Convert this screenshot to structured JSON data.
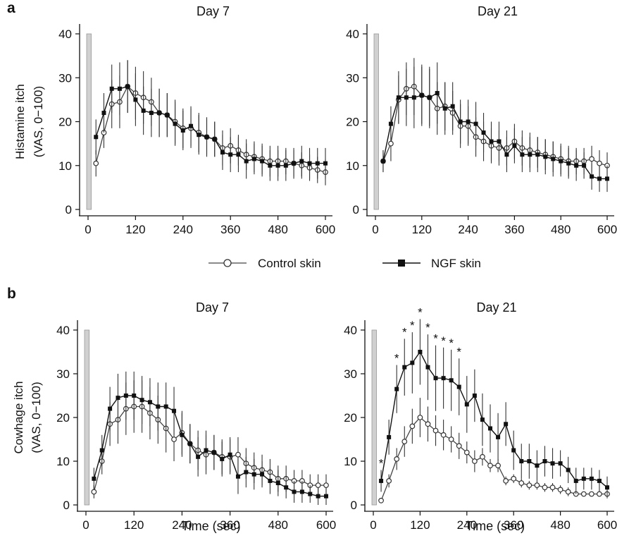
{
  "legend": {
    "control_label": "Control skin",
    "ngf_label": "NGF skin"
  },
  "colors": {
    "control_marker_fill": "#ffffff",
    "control_marker_stroke": "#333333",
    "ngf_marker_fill": "#111111",
    "stimulus_bar": "#d0d0d0"
  },
  "chart_data": [
    {
      "type": "line",
      "panel_letter": "a",
      "title": "Day 7",
      "xlabel": "",
      "ylabel": [
        "Histamine itch",
        "(VAS, 0−100)"
      ],
      "xlim": [
        -10,
        610
      ],
      "ylim": [
        0,
        40
      ],
      "xticks": [
        0,
        120,
        240,
        360,
        480,
        600
      ],
      "yticks": [
        0,
        10,
        20,
        30,
        40
      ],
      "stimulus_bar": {
        "x0": 0,
        "x1": 10,
        "y": 40
      },
      "x": [
        20,
        40,
        60,
        80,
        100,
        120,
        140,
        160,
        180,
        200,
        220,
        240,
        260,
        280,
        300,
        320,
        340,
        360,
        380,
        400,
        420,
        440,
        460,
        480,
        500,
        520,
        540,
        560,
        580,
        600
      ],
      "series": [
        {
          "name": "Control skin",
          "marker": "open-circle",
          "values": [
            10.5,
            17.5,
            24,
            24.5,
            28,
            26.5,
            25.5,
            24.5,
            22,
            21.5,
            20,
            18.5,
            18.5,
            17.5,
            16.5,
            16,
            14,
            14.5,
            13.5,
            12.5,
            12,
            11.5,
            11,
            11,
            11,
            10.5,
            10,
            9.5,
            9,
            8.5
          ],
          "err": [
            3,
            3.5,
            5.5,
            6,
            6,
            6,
            6,
            5.5,
            5.5,
            5,
            5,
            4.5,
            4.5,
            4.5,
            4,
            4,
            4,
            4,
            3.5,
            3.5,
            3.5,
            3.5,
            3.5,
            3.5,
            3,
            3,
            3,
            3,
            3,
            3
          ]
        },
        {
          "name": "NGF skin",
          "marker": "filled-square",
          "values": [
            16.5,
            22,
            27.5,
            27.5,
            28,
            25,
            22.5,
            22,
            22,
            21.5,
            19.5,
            18,
            19,
            17,
            16.5,
            16,
            13,
            12.5,
            12.5,
            11,
            11.5,
            11,
            10,
            10,
            10,
            10.5,
            11,
            10.5,
            10.5,
            10.5
          ],
          "err": [
            4,
            4.5,
            5.5,
            6,
            6,
            6,
            5.5,
            5.5,
            5.5,
            5,
            5,
            4.5,
            4.5,
            4.5,
            4.5,
            4,
            4,
            4,
            4,
            4,
            3.5,
            3.5,
            3.5,
            3.5,
            3.5,
            3.5,
            3.5,
            3.5,
            3.5,
            3.5
          ]
        }
      ]
    },
    {
      "type": "line",
      "panel_letter": "",
      "title": "Day 21",
      "xlabel": "",
      "ylabel": [],
      "xlim": [
        -10,
        610
      ],
      "ylim": [
        0,
        40
      ],
      "xticks": [
        0,
        120,
        240,
        360,
        480,
        600
      ],
      "yticks": [
        0,
        10,
        20,
        30,
        40
      ],
      "stimulus_bar": {
        "x0": 0,
        "x1": 10,
        "y": 40
      },
      "x": [
        20,
        40,
        60,
        80,
        100,
        120,
        140,
        160,
        180,
        200,
        220,
        240,
        260,
        280,
        300,
        320,
        340,
        360,
        380,
        400,
        420,
        440,
        460,
        480,
        500,
        520,
        540,
        560,
        580,
        600
      ],
      "series": [
        {
          "name": "Control skin",
          "marker": "open-circle",
          "values": [
            11,
            15,
            25,
            27.5,
            28,
            26,
            25.5,
            23,
            23.5,
            22,
            19,
            19,
            16.5,
            15.5,
            14.5,
            14,
            14,
            15.5,
            14,
            13.5,
            13,
            12.5,
            12,
            11.5,
            11,
            11,
            11,
            11.5,
            10.5,
            10
          ],
          "err": [
            2.5,
            4,
            5.5,
            6,
            6.5,
            6.5,
            6.5,
            6,
            5.5,
            5,
            5,
            4.5,
            4.5,
            4.5,
            4,
            4,
            4,
            4,
            4,
            4,
            3.5,
            3.5,
            3.5,
            3.5,
            3.5,
            3,
            3,
            3,
            3,
            3
          ]
        },
        {
          "name": "NGF skin",
          "marker": "filled-square",
          "values": [
            11,
            19.5,
            25.5,
            25.5,
            25.5,
            26,
            25.5,
            26.5,
            23,
            23.5,
            20,
            20,
            19.5,
            17.5,
            15.5,
            15.5,
            12.5,
            14.5,
            12.5,
            12.5,
            12.5,
            12,
            11.5,
            11,
            10.5,
            10,
            10,
            7.5,
            7,
            7
          ],
          "err": [
            2.5,
            4,
            6,
            6.5,
            7,
            7,
            7,
            7,
            6,
            5.5,
            5,
            5,
            5,
            4.5,
            4.5,
            4.5,
            4,
            4,
            4,
            4,
            4,
            4,
            4,
            3.5,
            3.5,
            3.5,
            3,
            3,
            3,
            3
          ]
        }
      ]
    },
    {
      "type": "line",
      "panel_letter": "b",
      "title": "Day 7",
      "xlabel": "Time (sec)",
      "ylabel": [
        "Cowhage itch",
        "(VAS, 0−100)"
      ],
      "xlim": [
        -10,
        610
      ],
      "ylim": [
        0,
        40
      ],
      "xticks": [
        0,
        120,
        240,
        360,
        480,
        600
      ],
      "yticks": [
        0,
        10,
        20,
        30,
        40
      ],
      "stimulus_bar": {
        "x0": 0,
        "x1": 10,
        "y": 40
      },
      "x": [
        20,
        40,
        60,
        80,
        100,
        120,
        140,
        160,
        180,
        200,
        220,
        240,
        260,
        280,
        300,
        320,
        340,
        360,
        380,
        400,
        420,
        440,
        460,
        480,
        500,
        520,
        540,
        560,
        580,
        600
      ],
      "series": [
        {
          "name": "Control skin",
          "marker": "open-circle",
          "values": [
            3,
            10,
            18.5,
            19.5,
            22,
            22.5,
            22.5,
            21,
            19.5,
            17.5,
            15,
            16.5,
            14,
            12.5,
            11.5,
            12,
            11,
            11,
            11.5,
            9.5,
            8.5,
            8,
            7.5,
            6,
            6,
            5.5,
            5.5,
            4.5,
            4.5,
            4.5
          ],
          "err": [
            1.5,
            3,
            5,
            5.5,
            6,
            6,
            6,
            6,
            5.5,
            5.5,
            5,
            5,
            4.5,
            4.5,
            4.5,
            4,
            4,
            4,
            4,
            3.5,
            3.5,
            3.5,
            3,
            3,
            3,
            2.5,
            2.5,
            2.5,
            2.5,
            2.5
          ]
        },
        {
          "name": "NGF skin",
          "marker": "filled-square",
          "values": [
            6,
            12.5,
            22,
            24.5,
            25,
            25,
            24,
            23.5,
            22.5,
            22.5,
            21.5,
            16,
            14,
            11,
            12.5,
            12,
            10.5,
            11.5,
            6.5,
            7.5,
            7,
            7,
            5.5,
            5,
            4,
            3,
            3,
            2.5,
            2,
            2
          ],
          "err": [
            2.5,
            3.5,
            5,
            5.5,
            5.5,
            5.5,
            5.5,
            5.5,
            5.5,
            5.5,
            5.5,
            5,
            4.5,
            4.5,
            4.5,
            4,
            4,
            4,
            4,
            3.5,
            3.5,
            3,
            3,
            3,
            2.5,
            2.5,
            2.5,
            2,
            2,
            2
          ]
        }
      ]
    },
    {
      "type": "line",
      "panel_letter": "",
      "title": "Day 21",
      "xlabel": "Time (sec)",
      "ylabel": [],
      "xlim": [
        -10,
        610
      ],
      "ylim": [
        0,
        40
      ],
      "xticks": [
        0,
        120,
        240,
        360,
        480,
        600
      ],
      "yticks": [
        0,
        10,
        20,
        30,
        40
      ],
      "stimulus_bar": {
        "x0": 0,
        "x1": 10,
        "y": 40
      },
      "x": [
        20,
        40,
        60,
        80,
        100,
        120,
        140,
        160,
        180,
        200,
        220,
        240,
        260,
        280,
        300,
        320,
        340,
        360,
        380,
        400,
        420,
        440,
        460,
        480,
        500,
        520,
        540,
        560,
        580,
        600
      ],
      "significance": {
        "symbol": "*",
        "x": [
          20,
          60,
          80,
          100,
          120,
          140,
          160,
          180,
          200,
          220
        ]
      },
      "series": [
        {
          "name": "Control skin",
          "marker": "open-circle",
          "values": [
            1,
            5.5,
            10.5,
            14.5,
            18,
            20,
            18.5,
            17,
            16,
            15,
            13.5,
            12,
            10,
            11,
            9,
            9,
            5.5,
            6,
            5,
            4.5,
            4.5,
            4,
            4,
            3.5,
            3,
            2.5,
            2.5,
            2.5,
            2.5,
            2.5
          ],
          "err": [
            0.5,
            1.5,
            2.5,
            3.5,
            4,
            4.5,
            4,
            3.5,
            3.5,
            3,
            3,
            2.5,
            2.5,
            2,
            1.5,
            1.5,
            1,
            1,
            1,
            1,
            1,
            1,
            1,
            1,
            1,
            0.5,
            0.5,
            0.5,
            0.5,
            0.5
          ]
        },
        {
          "name": "NGF skin",
          "marker": "filled-square",
          "values": [
            5.5,
            15.5,
            26.5,
            31.5,
            32.5,
            35,
            31.5,
            29,
            29,
            28.5,
            27,
            23,
            25,
            19.5,
            17.5,
            15.5,
            18.5,
            12.5,
            10,
            10,
            9,
            10,
            9.5,
            9.5,
            8,
            5.5,
            6,
            6,
            5.5,
            4
          ],
          "err": [
            2.5,
            4,
            5.5,
            6.5,
            7,
            7.5,
            7.5,
            7.5,
            7,
            7,
            6.5,
            6.5,
            6,
            6,
            5.5,
            5.5,
            5,
            4.5,
            4,
            4,
            3.5,
            3.5,
            3.5,
            3,
            3,
            3,
            2.5,
            2.5,
            2.5,
            2.5
          ]
        }
      ]
    }
  ]
}
